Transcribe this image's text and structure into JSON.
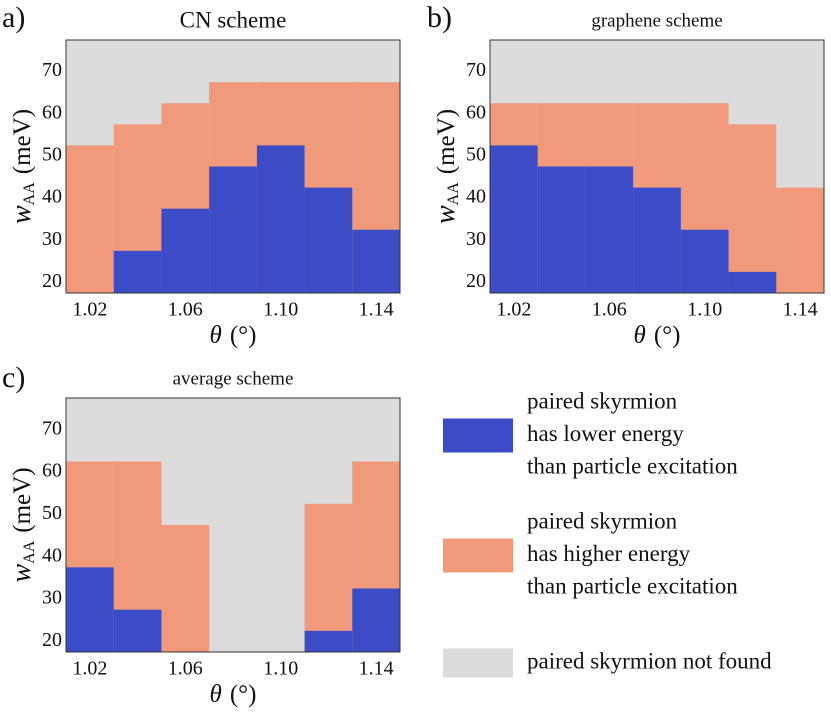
{
  "chart_data": [
    {
      "type": "heatmap",
      "label": "a)",
      "title": "CN scheme",
      "xlabel_symbol": "θ",
      "xlabel_unit": "(°)",
      "ylabel_symbol": "w",
      "ylabel_subscript": "AA",
      "ylabel_unit": "(meV)",
      "x": [
        1.02,
        1.04,
        1.06,
        1.08,
        1.1,
        1.12,
        1.14
      ],
      "xlim": [
        1.01,
        1.15
      ],
      "xticks": [
        1.02,
        1.06,
        {
          "value": 1.1,
          "label": "1.10"
        },
        1.14
      ],
      "ylim": [
        17.5,
        77.5
      ],
      "yticks": [
        20,
        30,
        40,
        50,
        60,
        70
      ],
      "background": "#dcdcdc",
      "series": [
        {
          "color": "#f0997b",
          "values": [
            52.5,
            57.5,
            62.5,
            67.5,
            67.5,
            67.5,
            67.5
          ]
        },
        {
          "color": "#3b4cc6",
          "values": [
            null,
            27.5,
            37.5,
            47.5,
            52.5,
            42.5,
            32.5
          ]
        }
      ]
    },
    {
      "type": "heatmap",
      "label": "b)",
      "title": "graphene scheme",
      "xlabel_symbol": "θ",
      "xlabel_unit": "(°)",
      "ylabel_symbol": "w",
      "ylabel_subscript": "AA",
      "ylabel_unit": "(meV)",
      "x": [
        1.02,
        1.04,
        1.06,
        1.08,
        1.1,
        1.12,
        1.14
      ],
      "xlim": [
        1.01,
        1.15
      ],
      "xticks": [
        1.02,
        1.06,
        {
          "value": 1.1,
          "label": "1.10"
        },
        1.14
      ],
      "ylim": [
        17.5,
        77.5
      ],
      "yticks": [
        20,
        30,
        40,
        50,
        60,
        70
      ],
      "background": "#dcdcdc",
      "series": [
        {
          "color": "#f0997b",
          "values": [
            62.5,
            62.5,
            62.5,
            62.5,
            62.5,
            57.5,
            42.5
          ]
        },
        {
          "color": "#3b4cc6",
          "values": [
            52.5,
            47.5,
            47.5,
            42.5,
            32.5,
            22.5,
            null
          ]
        }
      ]
    },
    {
      "type": "heatmap",
      "label": "c)",
      "title": "average scheme",
      "xlabel_symbol": "θ",
      "xlabel_unit": "(°)",
      "ylabel_symbol": "w",
      "ylabel_subscript": "AA",
      "ylabel_unit": "(meV)",
      "x": [
        1.02,
        1.04,
        1.06,
        1.08,
        1.1,
        1.12,
        1.14
      ],
      "xlim": [
        1.01,
        1.15
      ],
      "xticks": [
        1.02,
        1.06,
        {
          "value": 1.1,
          "label": "1.10"
        },
        1.14
      ],
      "ylim": [
        17.5,
        77.5
      ],
      "yticks": [
        20,
        30,
        40,
        50,
        60,
        70
      ],
      "background": "#dcdcdc",
      "series": [
        {
          "color": "#f0997b",
          "values": [
            62.5,
            62.5,
            47.5,
            null,
            null,
            52.5,
            62.5
          ]
        },
        {
          "color": "#3b4cc6",
          "values": [
            37.5,
            27.5,
            null,
            null,
            null,
            22.5,
            32.5
          ]
        }
      ]
    }
  ],
  "legend": [
    {
      "color": "#3b4cc6",
      "lines": [
        "paired skyrmion",
        "has lower energy",
        "than particle excitation"
      ]
    },
    {
      "color": "#f0997b",
      "lines": [
        "paired skyrmion",
        "has higher energy",
        "than particle excitation"
      ]
    },
    {
      "color": "#dcdcdc",
      "lines": [
        "paired skyrmion not found"
      ]
    }
  ]
}
